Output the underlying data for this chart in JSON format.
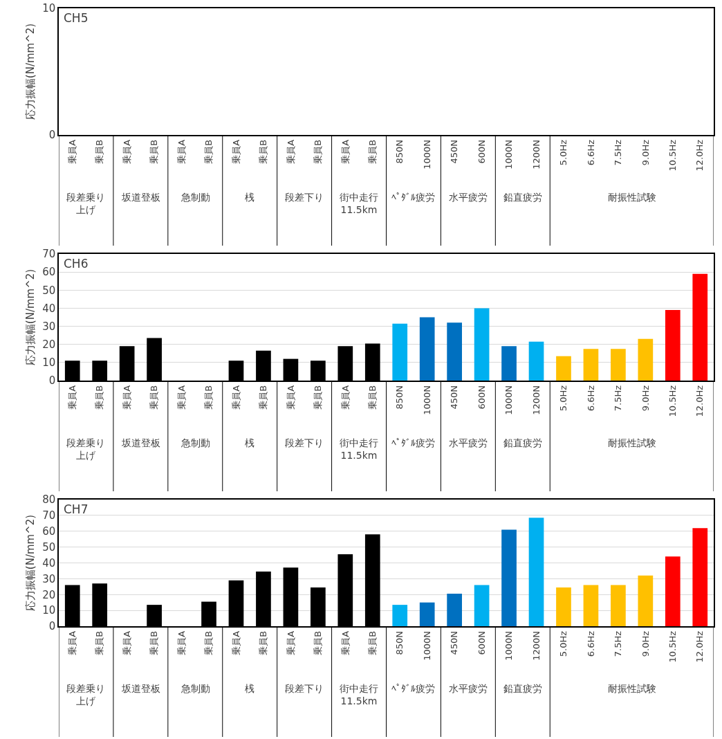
{
  "chart_data": [
    {
      "type": "bar",
      "title": "CH5",
      "ylabel": "応力振幅(N/mm^2)",
      "categories": [
        "乗員A",
        "乗員B",
        "乗員A",
        "乗員B",
        "乗員A",
        "乗員B",
        "乗員A",
        "乗員B",
        "乗員A",
        "乗員B",
        "乗員A",
        "乗員B",
        "850N",
        "1000N",
        "450N",
        "600N",
        "1000N",
        "1200N",
        "5.0Hz",
        "6.6Hz",
        "7.5Hz",
        "9.0Hz",
        "10.5Hz",
        "12.0Hz"
      ],
      "annotations": [
        "段差乗り上げ",
        "坂道登板",
        "急制動",
        "桟",
        "段差下り",
        "街中走行11.5km",
        "ﾍﾟﾀﾞﾙ疲労",
        "水平疲労",
        "鉛直疲労",
        "耐振性試験"
      ],
      "values": [
        null,
        null,
        null,
        null,
        null,
        null,
        null,
        null,
        null,
        null,
        null,
        null,
        null,
        null,
        null,
        null,
        null,
        null,
        null,
        null,
        null,
        null,
        null,
        null
      ],
      "ylim": [
        0,
        10
      ],
      "yticks": [
        0,
        10
      ],
      "grid": false
    },
    {
      "type": "bar",
      "title": "CH6",
      "ylabel": "応力振幅(N/mm^2)",
      "categories": [
        "乗員A",
        "乗員B",
        "乗員A",
        "乗員B",
        "乗員A",
        "乗員B",
        "乗員A",
        "乗員B",
        "乗員A",
        "乗員B",
        "乗員A",
        "乗員B",
        "850N",
        "1000N",
        "450N",
        "600N",
        "1000N",
        "1200N",
        "5.0Hz",
        "6.6Hz",
        "7.5Hz",
        "9.0Hz",
        "10.5Hz",
        "12.0Hz"
      ],
      "annotations": [
        "段差乗り上げ",
        "坂道登板",
        "急制動",
        "桟",
        "段差下り",
        "街中走行11.5km",
        "ﾍﾟﾀﾞﾙ疲労",
        "水平疲労",
        "鉛直疲労",
        "耐振性試験"
      ],
      "values": [
        11,
        11,
        19,
        23.5,
        null,
        null,
        11,
        16.5,
        12,
        11,
        19,
        20.5,
        31.5,
        35,
        32,
        40,
        19,
        21.5,
        13.5,
        17.5,
        17.5,
        23,
        39,
        59
      ],
      "colors": [
        "#000000",
        "#000000",
        "#000000",
        "#000000",
        "#000000",
        "#000000",
        "#000000",
        "#000000",
        "#000000",
        "#000000",
        "#000000",
        "#000000",
        "#00b0f0",
        "#0070c0",
        "#0070c0",
        "#00b0f0",
        "#0070c0",
        "#00b0f0",
        "#ffc000",
        "#ffc000",
        "#ffc000",
        "#ffc000",
        "#ff0000",
        "#ff0000"
      ],
      "ylim": [
        0,
        70
      ],
      "yticks": [
        0,
        10,
        20,
        30,
        40,
        50,
        60,
        70
      ],
      "grid": "y"
    },
    {
      "type": "bar",
      "title": "CH7",
      "ylabel": "応力振幅(N/mm^2)",
      "categories": [
        "乗員A",
        "乗員B",
        "乗員A",
        "乗員B",
        "乗員A",
        "乗員B",
        "乗員A",
        "乗員B",
        "乗員A",
        "乗員B",
        "乗員A",
        "乗員B",
        "850N",
        "1000N",
        "450N",
        "600N",
        "1000N",
        "1200N",
        "5.0Hz",
        "6.6Hz",
        "7.5Hz",
        "9.0Hz",
        "10.5Hz",
        "12.0Hz"
      ],
      "annotations": [
        "段差乗り上げ",
        "坂道登板",
        "急制動",
        "桟",
        "段差下り",
        "街中走行11.5km",
        "ﾍﾟﾀﾞﾙ疲労",
        "水平疲労",
        "鉛直疲労",
        "耐振性試験"
      ],
      "values": [
        26,
        27,
        null,
        13.5,
        null,
        15.5,
        29,
        34.5,
        37,
        24.5,
        45.5,
        58,
        13.5,
        15,
        20.5,
        26,
        61,
        68.5,
        24.5,
        26,
        26,
        32,
        44,
        62
      ],
      "colors": [
        "#000000",
        "#000000",
        "#000000",
        "#000000",
        "#000000",
        "#000000",
        "#000000",
        "#000000",
        "#000000",
        "#000000",
        "#000000",
        "#000000",
        "#00b0f0",
        "#0070c0",
        "#0070c0",
        "#00b0f0",
        "#0070c0",
        "#00b0f0",
        "#ffc000",
        "#ffc000",
        "#ffc000",
        "#ffc000",
        "#ff0000",
        "#ff0000"
      ],
      "ylim": [
        0,
        80
      ],
      "yticks": [
        0,
        10,
        20,
        30,
        40,
        50,
        60,
        70,
        80
      ],
      "grid": "y"
    }
  ]
}
